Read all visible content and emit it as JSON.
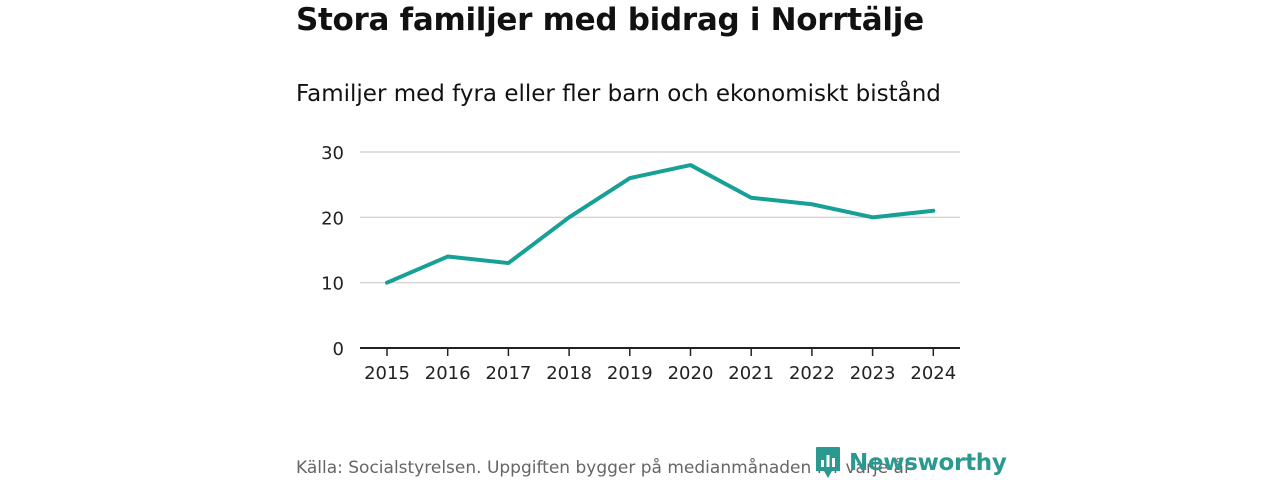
{
  "title": "Stora familjer med bidrag i Norrtälje",
  "subtitle": "Familjer med fyra eller fler barn och ekonomiskt bistånd",
  "source": "Källa: Socialstyrelsen. Uppgiften bygger på medianmånaden för varje år",
  "brand": {
    "name": "Newsworthy",
    "color": "#2a9a90",
    "icon": "newsworthy-logo-icon"
  },
  "colors": {
    "line": "#16a096",
    "grid": "#d6d6d6",
    "axis": "#222222"
  },
  "chart_data": {
    "type": "line",
    "title": "Stora familjer med bidrag i Norrtälje",
    "subtitle": "Familjer med fyra eller fler barn och ekonomiskt bistånd",
    "xlabel": "",
    "ylabel": "",
    "x": [
      "2015",
      "2016",
      "2017",
      "2018",
      "2019",
      "2020",
      "2021",
      "2022",
      "2023",
      "2024"
    ],
    "series": [
      {
        "name": "Familjer med fyra eller fler barn och ekonomiskt bistånd",
        "values": [
          10,
          14,
          13,
          20,
          26,
          28,
          23,
          22,
          20,
          21
        ]
      }
    ],
    "ylim": [
      0,
      30
    ],
    "yticks": [
      0,
      10,
      20,
      30
    ],
    "grid": true,
    "legend": "none"
  }
}
